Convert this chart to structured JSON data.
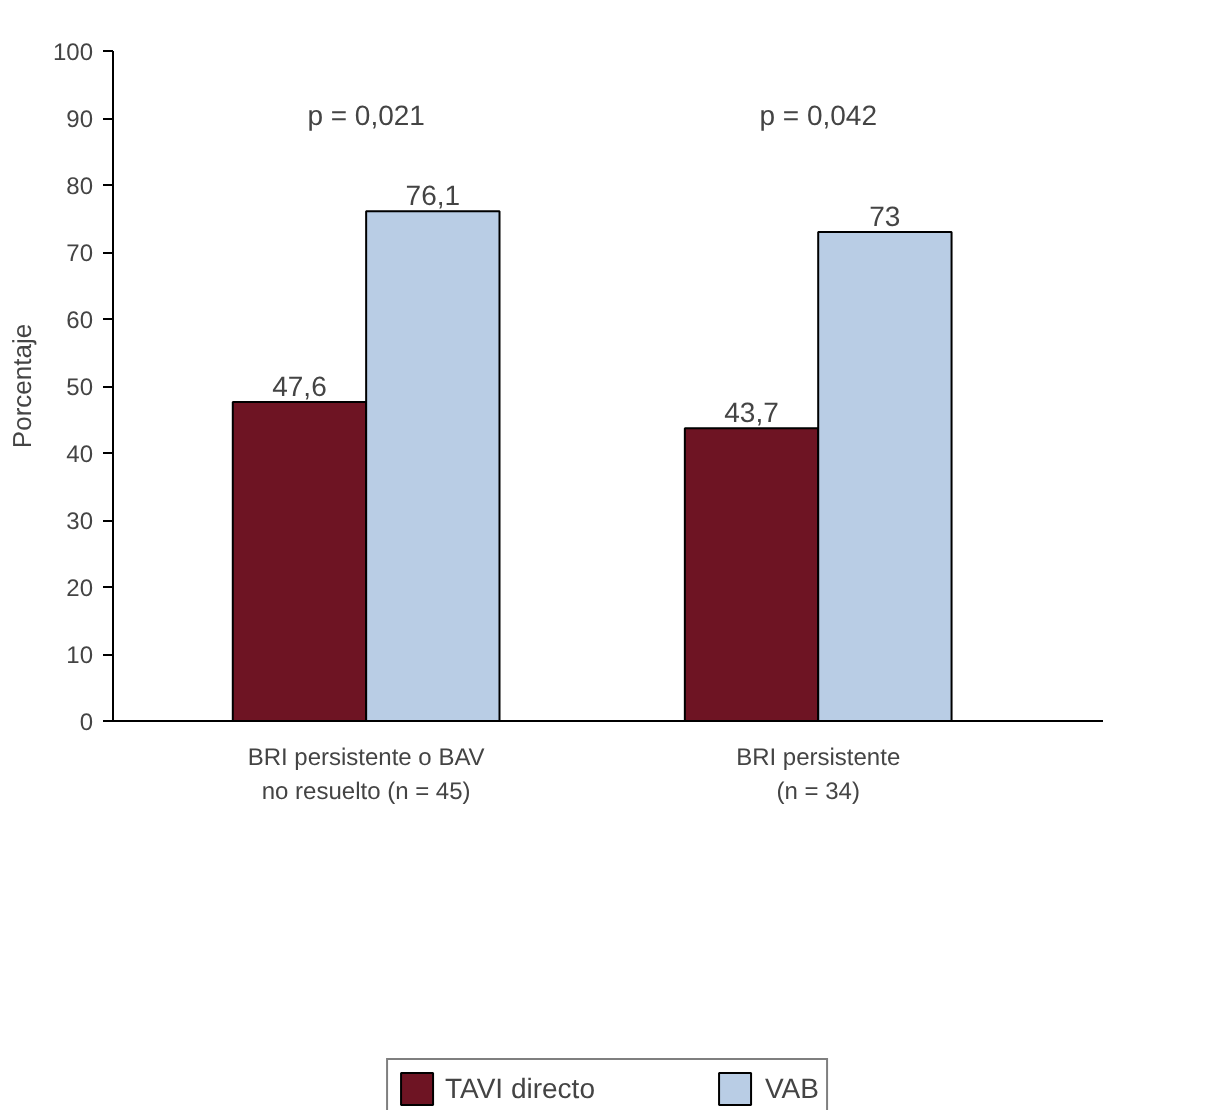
{
  "chart_data": {
    "type": "bar",
    "ylabel": "Porcentaje",
    "categories": [
      "BRI persistente o BAV\nno resuelto (n = 45)",
      "BRI persistente\n(n = 34)"
    ],
    "series": [
      {
        "name": "TAVI directo",
        "color": "#6e1423",
        "values": [
          47.6,
          43.7
        ],
        "value_labels": [
          "47,6",
          "43,7"
        ]
      },
      {
        "name": "VAB",
        "color": "#b9cde5",
        "values": [
          76.1,
          73
        ],
        "value_labels": [
          "76,1",
          "73"
        ]
      }
    ],
    "annotations": [
      "p = 0,021",
      "p = 0,042"
    ],
    "ylim": [
      0,
      100
    ],
    "yticks": [
      0,
      10,
      20,
      30,
      40,
      50,
      60,
      70,
      80,
      90,
      100
    ],
    "grid": false,
    "legend": "bottom"
  }
}
